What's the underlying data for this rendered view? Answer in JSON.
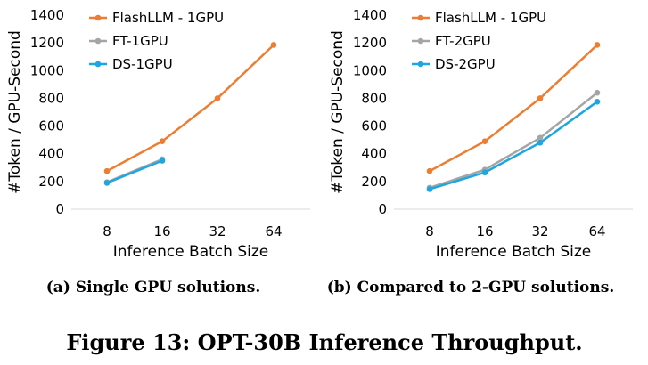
{
  "chart_data": [
    {
      "type": "line",
      "categories": [
        "8",
        "16",
        "32",
        "64"
      ],
      "ylabel": "#Token / GPU-Second",
      "xlabel": "Inference Batch Size",
      "ylim": [
        0,
        1400
      ],
      "yticks": [
        0,
        200,
        400,
        600,
        800,
        1000,
        1200,
        1400
      ],
      "legend_position": "top-left",
      "grid": false,
      "caption": "(a) Single GPU solutions.",
      "series": [
        {
          "name": "FlashLLM - 1GPU",
          "color": "#ED7D31",
          "values": [
            275,
            490,
            800,
            1185
          ]
        },
        {
          "name": "FT-1GPU",
          "color": "#A5A5A5",
          "values": [
            195,
            360,
            null,
            null
          ]
        },
        {
          "name": "DS-1GPU",
          "color": "#1EA6E1",
          "values": [
            190,
            350,
            null,
            null
          ]
        }
      ]
    },
    {
      "type": "line",
      "categories": [
        "8",
        "16",
        "32",
        "64"
      ],
      "ylabel": "#Token / GPU-Second",
      "xlabel": "Inference Batch Size",
      "ylim": [
        0,
        1400
      ],
      "yticks": [
        0,
        200,
        400,
        600,
        800,
        1000,
        1200,
        1400
      ],
      "legend_position": "top-left",
      "grid": false,
      "caption": "(b) Compared to 2-GPU solutions.",
      "series": [
        {
          "name": "FlashLLM - 1GPU",
          "color": "#ED7D31",
          "values": [
            275,
            490,
            800,
            1185
          ]
        },
        {
          "name": "FT-2GPU",
          "color": "#A5A5A5",
          "values": [
            155,
            285,
            515,
            840
          ]
        },
        {
          "name": "DS-2GPU",
          "color": "#1EA6E1",
          "values": [
            145,
            265,
            480,
            775
          ]
        }
      ]
    }
  ],
  "figure_caption": "Figure 13: OPT-30B Inference Throughput."
}
